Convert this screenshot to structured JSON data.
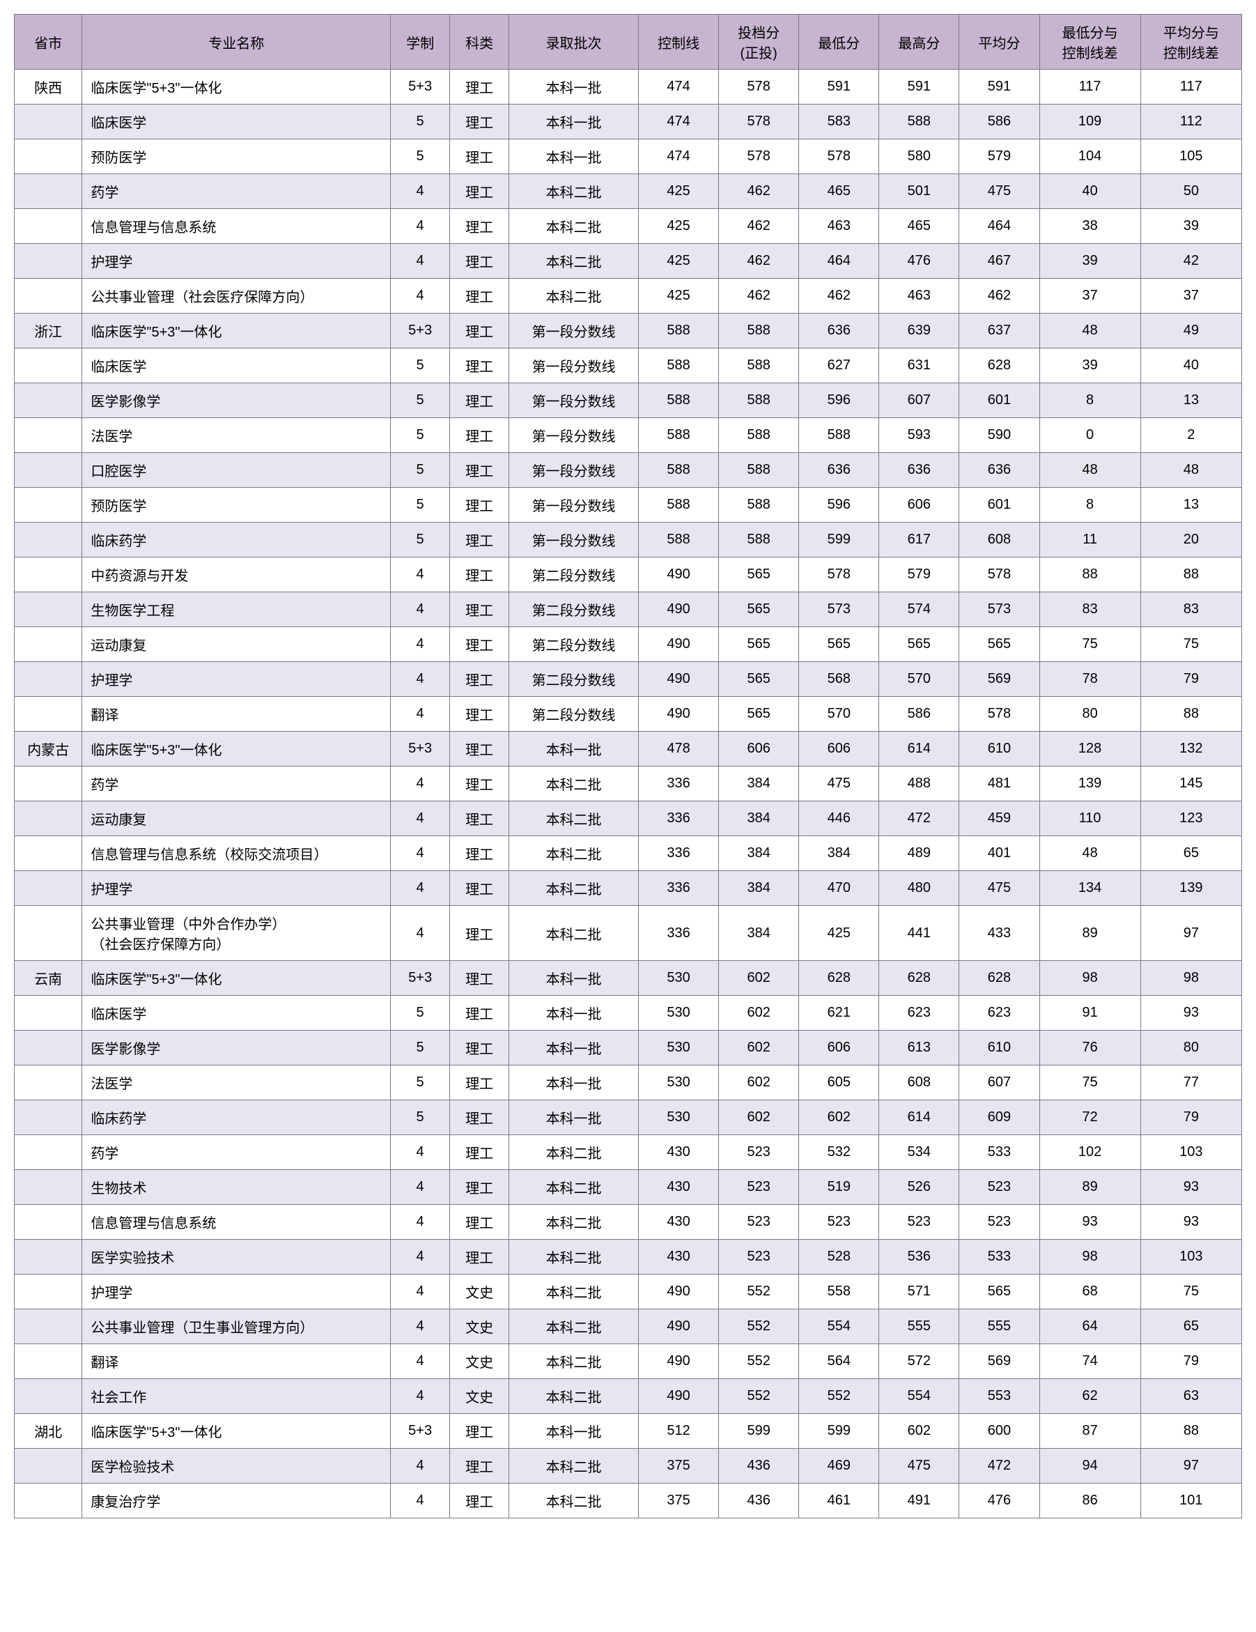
{
  "headers": [
    "省市",
    "专业名称",
    "学制",
    "科类",
    "录取批次",
    "控制线",
    "投档分\n(正投)",
    "最低分",
    "最高分",
    "平均分",
    "最低分与\n控制线差",
    "平均分与\n控制线差"
  ],
  "rows": [
    {
      "province": "陕西",
      "major": "临床医学\"5+3\"一体化",
      "dur": "5+3",
      "cat": "理工",
      "batch": "本科一批",
      "ctrl": 474,
      "cast": 578,
      "min": 591,
      "max": 591,
      "avg": 591,
      "d1": 117,
      "d2": 117
    },
    {
      "province": "",
      "major": "临床医学",
      "dur": "5",
      "cat": "理工",
      "batch": "本科一批",
      "ctrl": 474,
      "cast": 578,
      "min": 583,
      "max": 588,
      "avg": 586,
      "d1": 109,
      "d2": 112
    },
    {
      "province": "",
      "major": "预防医学",
      "dur": "5",
      "cat": "理工",
      "batch": "本科一批",
      "ctrl": 474,
      "cast": 578,
      "min": 578,
      "max": 580,
      "avg": 579,
      "d1": 104,
      "d2": 105
    },
    {
      "province": "",
      "major": "药学",
      "dur": "4",
      "cat": "理工",
      "batch": "本科二批",
      "ctrl": 425,
      "cast": 462,
      "min": 465,
      "max": 501,
      "avg": 475,
      "d1": 40,
      "d2": 50
    },
    {
      "province": "",
      "major": "信息管理与信息系统",
      "dur": "4",
      "cat": "理工",
      "batch": "本科二批",
      "ctrl": 425,
      "cast": 462,
      "min": 463,
      "max": 465,
      "avg": 464,
      "d1": 38,
      "d2": 39
    },
    {
      "province": "",
      "major": "护理学",
      "dur": "4",
      "cat": "理工",
      "batch": "本科二批",
      "ctrl": 425,
      "cast": 462,
      "min": 464,
      "max": 476,
      "avg": 467,
      "d1": 39,
      "d2": 42
    },
    {
      "province": "",
      "major": "公共事业管理（社会医疗保障方向）",
      "dur": "4",
      "cat": "理工",
      "batch": "本科二批",
      "ctrl": 425,
      "cast": 462,
      "min": 462,
      "max": 463,
      "avg": 462,
      "d1": 37,
      "d2": 37
    },
    {
      "province": "浙江",
      "major": "临床医学\"5+3\"一体化",
      "dur": "5+3",
      "cat": "理工",
      "batch": "第一段分数线",
      "ctrl": 588,
      "cast": 588,
      "min": 636,
      "max": 639,
      "avg": 637,
      "d1": 48,
      "d2": 49
    },
    {
      "province": "",
      "major": "临床医学",
      "dur": "5",
      "cat": "理工",
      "batch": "第一段分数线",
      "ctrl": 588,
      "cast": 588,
      "min": 627,
      "max": 631,
      "avg": 628,
      "d1": 39,
      "d2": 40
    },
    {
      "province": "",
      "major": "医学影像学",
      "dur": "5",
      "cat": "理工",
      "batch": "第一段分数线",
      "ctrl": 588,
      "cast": 588,
      "min": 596,
      "max": 607,
      "avg": 601,
      "d1": 8,
      "d2": 13
    },
    {
      "province": "",
      "major": "法医学",
      "dur": "5",
      "cat": "理工",
      "batch": "第一段分数线",
      "ctrl": 588,
      "cast": 588,
      "min": 588,
      "max": 593,
      "avg": 590,
      "d1": 0,
      "d2": 2
    },
    {
      "province": "",
      "major": "口腔医学",
      "dur": "5",
      "cat": "理工",
      "batch": "第一段分数线",
      "ctrl": 588,
      "cast": 588,
      "min": 636,
      "max": 636,
      "avg": 636,
      "d1": 48,
      "d2": 48
    },
    {
      "province": "",
      "major": "预防医学",
      "dur": "5",
      "cat": "理工",
      "batch": "第一段分数线",
      "ctrl": 588,
      "cast": 588,
      "min": 596,
      "max": 606,
      "avg": 601,
      "d1": 8,
      "d2": 13
    },
    {
      "province": "",
      "major": "临床药学",
      "dur": "5",
      "cat": "理工",
      "batch": "第一段分数线",
      "ctrl": 588,
      "cast": 588,
      "min": 599,
      "max": 617,
      "avg": 608,
      "d1": 11,
      "d2": 20
    },
    {
      "province": "",
      "major": "中药资源与开发",
      "dur": "4",
      "cat": "理工",
      "batch": "第二段分数线",
      "ctrl": 490,
      "cast": 565,
      "min": 578,
      "max": 579,
      "avg": 578,
      "d1": 88,
      "d2": 88
    },
    {
      "province": "",
      "major": "生物医学工程",
      "dur": "4",
      "cat": "理工",
      "batch": "第二段分数线",
      "ctrl": 490,
      "cast": 565,
      "min": 573,
      "max": 574,
      "avg": 573,
      "d1": 83,
      "d2": 83
    },
    {
      "province": "",
      "major": "运动康复",
      "dur": "4",
      "cat": "理工",
      "batch": "第二段分数线",
      "ctrl": 490,
      "cast": 565,
      "min": 565,
      "max": 565,
      "avg": 565,
      "d1": 75,
      "d2": 75
    },
    {
      "province": "",
      "major": "护理学",
      "dur": "4",
      "cat": "理工",
      "batch": "第二段分数线",
      "ctrl": 490,
      "cast": 565,
      "min": 568,
      "max": 570,
      "avg": 569,
      "d1": 78,
      "d2": 79
    },
    {
      "province": "",
      "major": "翻译",
      "dur": "4",
      "cat": "理工",
      "batch": "第二段分数线",
      "ctrl": 490,
      "cast": 565,
      "min": 570,
      "max": 586,
      "avg": 578,
      "d1": 80,
      "d2": 88
    },
    {
      "province": "内蒙古",
      "major": "临床医学\"5+3\"一体化",
      "dur": "5+3",
      "cat": "理工",
      "batch": "本科一批",
      "ctrl": 478,
      "cast": 606,
      "min": 606,
      "max": 614,
      "avg": 610,
      "d1": 128,
      "d2": 132
    },
    {
      "province": "",
      "major": "药学",
      "dur": "4",
      "cat": "理工",
      "batch": "本科二批",
      "ctrl": 336,
      "cast": 384,
      "min": 475,
      "max": 488,
      "avg": 481,
      "d1": 139,
      "d2": 145
    },
    {
      "province": "",
      "major": "运动康复",
      "dur": "4",
      "cat": "理工",
      "batch": "本科二批",
      "ctrl": 336,
      "cast": 384,
      "min": 446,
      "max": 472,
      "avg": 459,
      "d1": 110,
      "d2": 123
    },
    {
      "province": "",
      "major": "信息管理与信息系统（校际交流项目）",
      "dur": "4",
      "cat": "理工",
      "batch": "本科二批",
      "ctrl": 336,
      "cast": 384,
      "min": 384,
      "max": 489,
      "avg": 401,
      "d1": 48,
      "d2": 65
    },
    {
      "province": "",
      "major": "护理学",
      "dur": "4",
      "cat": "理工",
      "batch": "本科二批",
      "ctrl": 336,
      "cast": 384,
      "min": 470,
      "max": 480,
      "avg": 475,
      "d1": 134,
      "d2": 139
    },
    {
      "province": "",
      "major": "公共事业管理（中外合作办学）\n（社会医疗保障方向）",
      "dur": "4",
      "cat": "理工",
      "batch": "本科二批",
      "ctrl": 336,
      "cast": 384,
      "min": 425,
      "max": 441,
      "avg": 433,
      "d1": 89,
      "d2": 97
    },
    {
      "province": "云南",
      "major": "临床医学\"5+3\"一体化",
      "dur": "5+3",
      "cat": "理工",
      "batch": "本科一批",
      "ctrl": 530,
      "cast": 602,
      "min": 628,
      "max": 628,
      "avg": 628,
      "d1": 98,
      "d2": 98
    },
    {
      "province": "",
      "major": "临床医学",
      "dur": "5",
      "cat": "理工",
      "batch": "本科一批",
      "ctrl": 530,
      "cast": 602,
      "min": 621,
      "max": 623,
      "avg": 623,
      "d1": 91,
      "d2": 93
    },
    {
      "province": "",
      "major": "医学影像学",
      "dur": "5",
      "cat": "理工",
      "batch": "本科一批",
      "ctrl": 530,
      "cast": 602,
      "min": 606,
      "max": 613,
      "avg": 610,
      "d1": 76,
      "d2": 80
    },
    {
      "province": "",
      "major": "法医学",
      "dur": "5",
      "cat": "理工",
      "batch": "本科一批",
      "ctrl": 530,
      "cast": 602,
      "min": 605,
      "max": 608,
      "avg": 607,
      "d1": 75,
      "d2": 77
    },
    {
      "province": "",
      "major": "临床药学",
      "dur": "5",
      "cat": "理工",
      "batch": "本科一批",
      "ctrl": 530,
      "cast": 602,
      "min": 602,
      "max": 614,
      "avg": 609,
      "d1": 72,
      "d2": 79
    },
    {
      "province": "",
      "major": "药学",
      "dur": "4",
      "cat": "理工",
      "batch": "本科二批",
      "ctrl": 430,
      "cast": 523,
      "min": 532,
      "max": 534,
      "avg": 533,
      "d1": 102,
      "d2": 103
    },
    {
      "province": "",
      "major": "生物技术",
      "dur": "4",
      "cat": "理工",
      "batch": "本科二批",
      "ctrl": 430,
      "cast": 523,
      "min": 519,
      "max": 526,
      "avg": 523,
      "d1": 89,
      "d2": 93
    },
    {
      "province": "",
      "major": "信息管理与信息系统",
      "dur": "4",
      "cat": "理工",
      "batch": "本科二批",
      "ctrl": 430,
      "cast": 523,
      "min": 523,
      "max": 523,
      "avg": 523,
      "d1": 93,
      "d2": 93
    },
    {
      "province": "",
      "major": "医学实验技术",
      "dur": "4",
      "cat": "理工",
      "batch": "本科二批",
      "ctrl": 430,
      "cast": 523,
      "min": 528,
      "max": 536,
      "avg": 533,
      "d1": 98,
      "d2": 103
    },
    {
      "province": "",
      "major": "护理学",
      "dur": "4",
      "cat": "文史",
      "batch": "本科二批",
      "ctrl": 490,
      "cast": 552,
      "min": 558,
      "max": 571,
      "avg": 565,
      "d1": 68,
      "d2": 75
    },
    {
      "province": "",
      "major": "公共事业管理（卫生事业管理方向）",
      "dur": "4",
      "cat": "文史",
      "batch": "本科二批",
      "ctrl": 490,
      "cast": 552,
      "min": 554,
      "max": 555,
      "avg": 555,
      "d1": 64,
      "d2": 65
    },
    {
      "province": "",
      "major": "翻译",
      "dur": "4",
      "cat": "文史",
      "batch": "本科二批",
      "ctrl": 490,
      "cast": 552,
      "min": 564,
      "max": 572,
      "avg": 569,
      "d1": 74,
      "d2": 79
    },
    {
      "province": "",
      "major": "社会工作",
      "dur": "4",
      "cat": "文史",
      "batch": "本科二批",
      "ctrl": 490,
      "cast": 552,
      "min": 552,
      "max": 554,
      "avg": 553,
      "d1": 62,
      "d2": 63
    },
    {
      "province": "湖北",
      "major": "临床医学\"5+3\"一体化",
      "dur": "5+3",
      "cat": "理工",
      "batch": "本科一批",
      "ctrl": 512,
      "cast": 599,
      "min": 599,
      "max": 602,
      "avg": 600,
      "d1": 87,
      "d2": 88
    },
    {
      "province": "",
      "major": "医学检验技术",
      "dur": "4",
      "cat": "理工",
      "batch": "本科二批",
      "ctrl": 375,
      "cast": 436,
      "min": 469,
      "max": 475,
      "avg": 472,
      "d1": 94,
      "d2": 97
    },
    {
      "province": "",
      "major": "康复治疗学",
      "dur": "4",
      "cat": "理工",
      "batch": "本科二批",
      "ctrl": 375,
      "cast": 436,
      "min": 461,
      "max": 491,
      "avg": 476,
      "d1": 86,
      "d2": 101
    }
  ]
}
